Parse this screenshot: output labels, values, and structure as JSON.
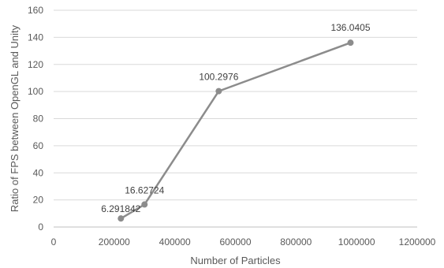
{
  "chart_data": {
    "type": "scatter",
    "title": "",
    "xlabel": "Number of Particles",
    "ylabel": "Ratio of FPS between OpenGL and Unity",
    "xlim": [
      0,
      1200000
    ],
    "ylim": [
      0,
      160
    ],
    "x_ticks": [
      0,
      200000,
      400000,
      600000,
      800000,
      1000000,
      1200000
    ],
    "x_tick_labels": [
      "0",
      "200000",
      "400000",
      "600000",
      "800000",
      "1000000",
      "1200000"
    ],
    "y_ticks": [
      0,
      20,
      40,
      60,
      80,
      100,
      120,
      140,
      160
    ],
    "y_tick_labels": [
      "0",
      "20",
      "40",
      "60",
      "80",
      "100",
      "120",
      "140",
      "160"
    ],
    "grid": "horizontal",
    "legend": "none",
    "series": [
      {
        "x": [
          222000,
          300000,
          545000,
          980000
        ],
        "y": [
          6.291842,
          16.62724,
          100.2976,
          136.0405
        ],
        "data_labels": [
          "6.291842",
          "16.62724",
          "100.2976",
          "136.0405"
        ],
        "color": "#8c8c8c",
        "lines": true
      }
    ]
  },
  "colors": {
    "series": "#8c8c8c",
    "grid": "#d9d9d9",
    "axis": "#bfbfbf",
    "text": "#595959",
    "data_label": "#404040"
  }
}
